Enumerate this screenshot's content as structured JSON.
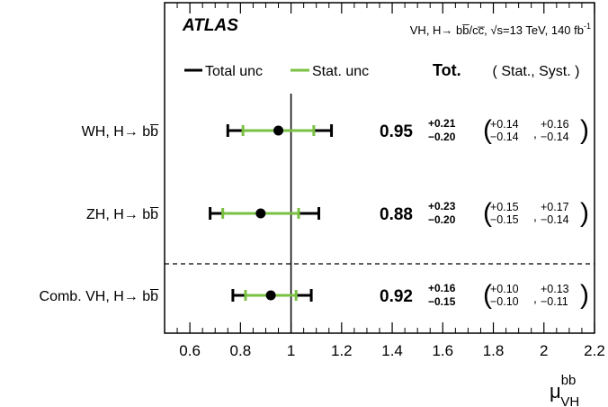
{
  "header": {
    "experiment": "ATLAS",
    "process_text": "VH, H→ bb̅/cc̅, √s=13 TeV, 140 fb",
    "lumi_sup": "-1"
  },
  "legend": {
    "total_label": "Total unc",
    "stat_label": "Stat. unc",
    "tot_header": "Tot.",
    "breakdown_header": "( Stat., Syst. )"
  },
  "colors": {
    "total": "#000000",
    "stat": "#7ac143",
    "ref_line": "#000000"
  },
  "axis": {
    "xlabel_main": "μ",
    "xlabel_sup": "bb",
    "xlabel_sub": "VH"
  },
  "chart_data": {
    "type": "scatter",
    "subtype": "summary_plot_with_error_bars",
    "xlim": [
      0.5,
      2.2
    ],
    "x_ticks": [
      "0.6",
      "0.8",
      "1",
      "1.2",
      "1.4",
      "1.6",
      "1.8",
      "2",
      "2.2"
    ],
    "reference_line": 1.0,
    "entries": [
      {
        "label": "WH, H→ bb̅",
        "value": 0.95,
        "value_text": "0.95",
        "tot_up": 0.21,
        "tot_up_text": "+0.21",
        "tot_down": 0.2,
        "tot_down_text": "−0.20",
        "stat_up": 0.14,
        "stat_up_text": "+0.14",
        "stat_down": 0.14,
        "stat_down_text": "−0.14",
        "syst_up": 0.16,
        "syst_up_text": "+0.16",
        "syst_down": 0.14,
        "syst_down_text": "−0.14"
      },
      {
        "label": "ZH, H→ bb̅",
        "value": 0.88,
        "value_text": "0.88",
        "tot_up": 0.23,
        "tot_up_text": "+0.23",
        "tot_down": 0.2,
        "tot_down_text": "−0.20",
        "stat_up": 0.15,
        "stat_up_text": "+0.15",
        "stat_down": 0.15,
        "stat_down_text": "−0.15",
        "syst_up": 0.17,
        "syst_up_text": "+0.17",
        "syst_down": 0.14,
        "syst_down_text": "−0.14"
      },
      {
        "label": "Comb. VH, H→ bb̅",
        "value": 0.92,
        "value_text": "0.92",
        "tot_up": 0.16,
        "tot_up_text": "+0.16",
        "tot_down": 0.15,
        "tot_down_text": "−0.15",
        "stat_up": 0.1,
        "stat_up_text": "+0.10",
        "stat_down": 0.1,
        "stat_down_text": "−0.10",
        "syst_up": 0.13,
        "syst_up_text": "+0.13",
        "syst_down": 0.11,
        "syst_down_text": "−0.11"
      }
    ]
  }
}
